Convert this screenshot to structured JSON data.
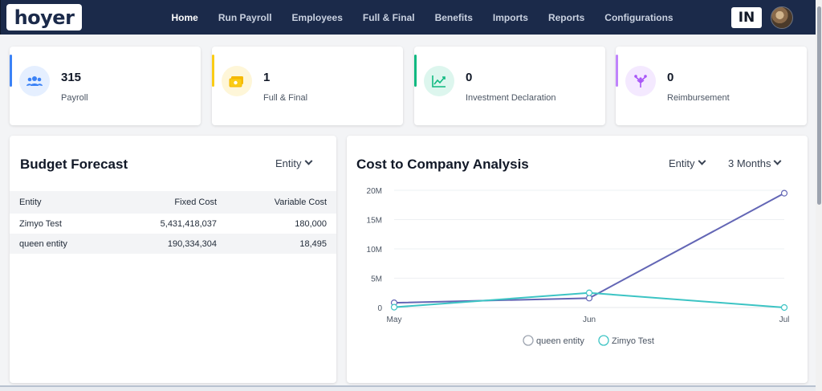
{
  "header": {
    "logo_text": "hoyer",
    "nav": [
      {
        "label": "Home",
        "active": true
      },
      {
        "label": "Run Payroll",
        "active": false
      },
      {
        "label": "Employees",
        "active": false
      },
      {
        "label": "Full & Final",
        "active": false
      },
      {
        "label": "Benefits",
        "active": false
      },
      {
        "label": "Imports",
        "active": false
      },
      {
        "label": "Reports",
        "active": false
      },
      {
        "label": "Configurations",
        "active": false
      }
    ],
    "country_code": "IN"
  },
  "stats": [
    {
      "value": "315",
      "label": "Payroll",
      "icon": "users-icon",
      "accent": "#3b82f6"
    },
    {
      "value": "1",
      "label": "Full & Final",
      "icon": "cash-icon",
      "accent": "#facc15"
    },
    {
      "value": "0",
      "label": "Investment Declaration",
      "icon": "trend-icon",
      "accent": "#10b981"
    },
    {
      "value": "0",
      "label": "Reimbursement",
      "icon": "reimbursement-icon",
      "accent": "#c084fc"
    }
  ],
  "budget": {
    "title": "Budget Forecast",
    "filter": "Entity",
    "columns": [
      "Entity",
      "Fixed Cost",
      "Variable Cost"
    ],
    "rows": [
      [
        "Zimyo Test",
        "5,431,418,037",
        "180,000"
      ],
      [
        "queen entity",
        "190,334,304",
        "18,495"
      ]
    ]
  },
  "ctc": {
    "title": "Cost to Company Analysis",
    "filter_entity": "Entity",
    "filter_period": "3 Months"
  },
  "chart_data": {
    "type": "line",
    "title": "Cost to Company Analysis",
    "x": [
      "May",
      "Jun",
      "Jul"
    ],
    "series": [
      {
        "name": "queen entity",
        "values": [
          800000,
          1600000,
          19500000
        ],
        "color": "#6366b5"
      },
      {
        "name": "Zimyo Test",
        "values": [
          50000,
          2500000,
          0
        ],
        "color": "#3cc4c4"
      }
    ],
    "yticks": [
      "20M",
      "15M",
      "10M",
      "5M",
      "0"
    ],
    "ylim": [
      0,
      20000000
    ],
    "grid": true,
    "legend": "bottom"
  }
}
